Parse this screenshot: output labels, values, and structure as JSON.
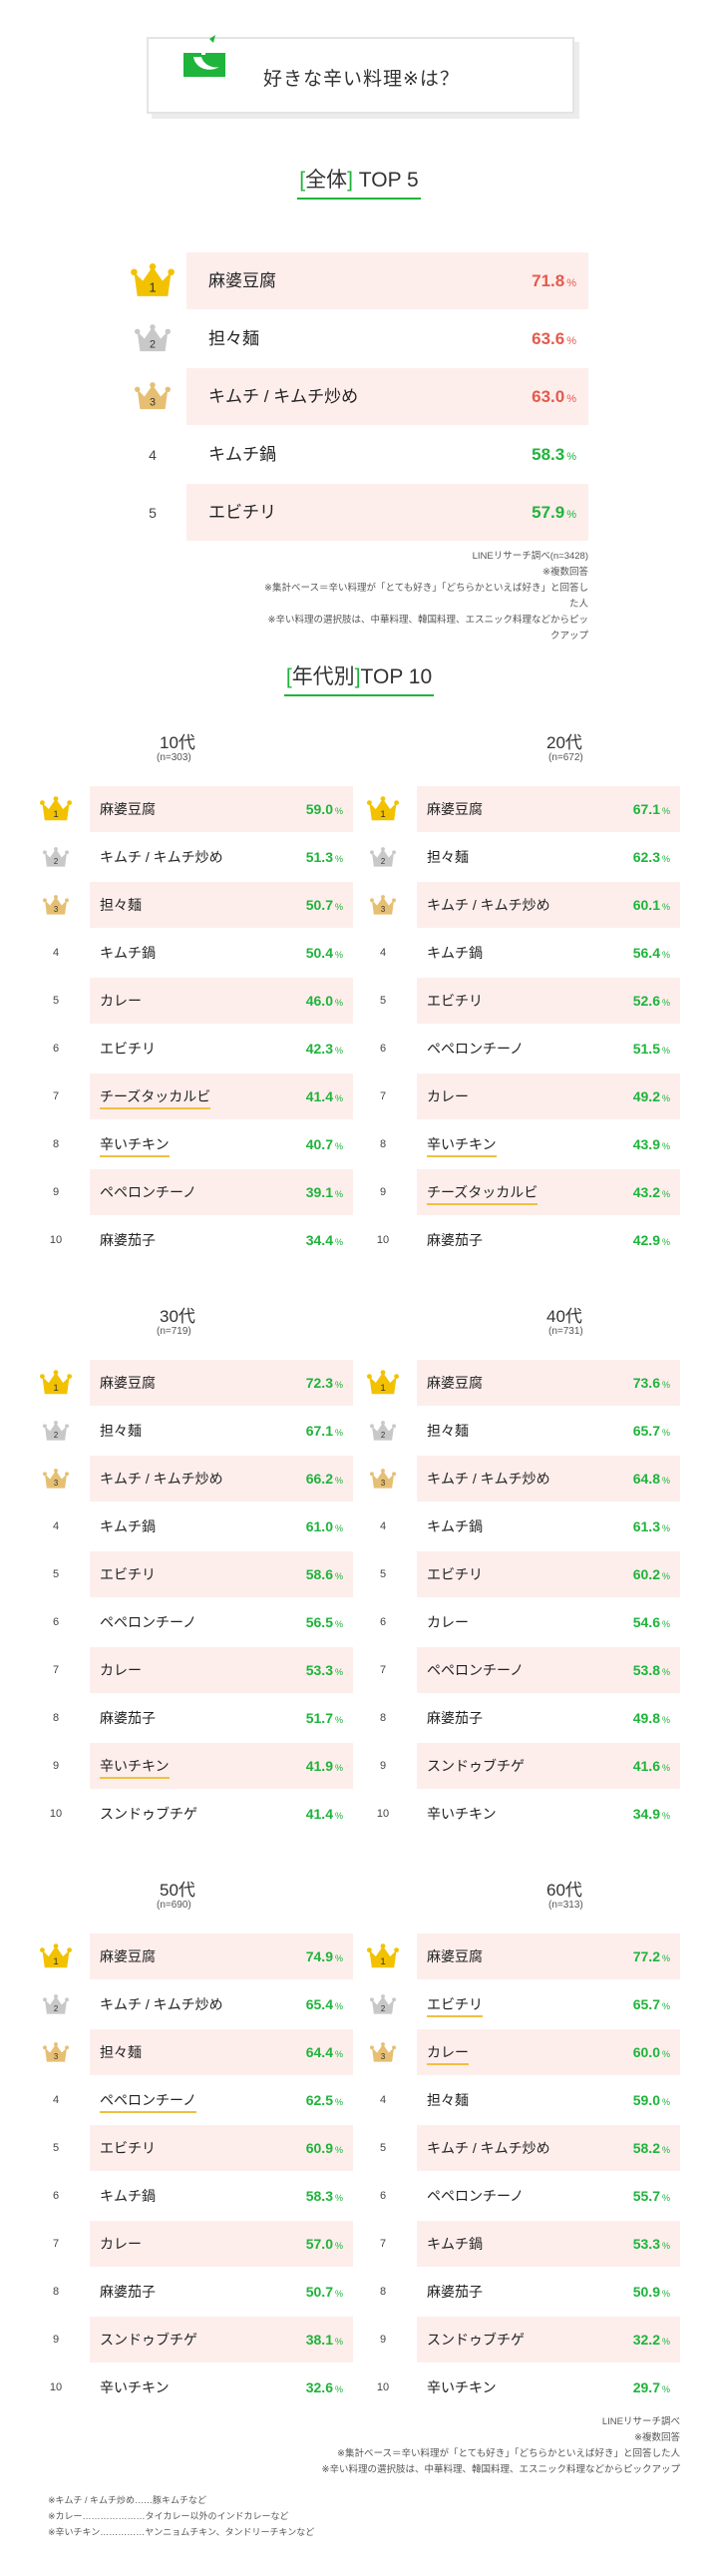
{
  "header": {
    "title": "好きな辛い料理※は？"
  },
  "overall": {
    "heading_open": "[",
    "heading_label": "全体",
    "heading_close": "]",
    "heading_suffix": "TOP 5",
    "rows": [
      {
        "rank": "1",
        "name": "麻婆豆腐",
        "value": "71.8",
        "unit": "%"
      },
      {
        "rank": "2",
        "name": "担々麺",
        "value": "63.6",
        "unit": "%"
      },
      {
        "rank": "3",
        "name": "キムチ / キムチ炒め",
        "value": "63.0",
        "unit": "%"
      },
      {
        "rank": "4",
        "name": "キムチ鍋",
        "value": "58.3",
        "unit": "%"
      },
      {
        "rank": "5",
        "name": "エビチリ",
        "value": "57.9",
        "unit": "%"
      }
    ],
    "notes": [
      "LINEリサーチ調べ(n=3428)",
      "※複数回答",
      "※集計ベース＝辛い料理が「とても好き」「どちらかといえば好き」と回答した人",
      "※辛い料理の選択肢は、中華料理、韓国料理、エスニック料理などからピックアップ"
    ]
  },
  "by_age": {
    "heading_open": "[",
    "heading_label": "年代別",
    "heading_close": "]",
    "heading_suffix": "TOP 10",
    "groups": [
      {
        "age": "10代",
        "n": "(n=303)",
        "rows": [
          {
            "rank": "1",
            "name": "麻婆豆腐",
            "value": "59.0",
            "unit": "%"
          },
          {
            "rank": "2",
            "name": "キムチ / キムチ炒め",
            "value": "51.3",
            "unit": "%"
          },
          {
            "rank": "3",
            "name": "担々麺",
            "value": "50.7",
            "unit": "%"
          },
          {
            "rank": "4",
            "name": "キムチ鍋",
            "value": "50.4",
            "unit": "%"
          },
          {
            "rank": "5",
            "name": "カレー",
            "value": "46.0",
            "unit": "%"
          },
          {
            "rank": "6",
            "name": "エビチリ",
            "value": "42.3",
            "unit": "%"
          },
          {
            "rank": "7",
            "name": "チーズタッカルビ",
            "value": "41.4",
            "unit": "%"
          },
          {
            "rank": "8",
            "name": "辛いチキン",
            "value": "40.7",
            "unit": "%"
          },
          {
            "rank": "9",
            "name": "ペペロンチーノ",
            "value": "39.1",
            "unit": "%"
          },
          {
            "rank": "10",
            "name": "麻婆茄子",
            "value": "34.4",
            "unit": "%"
          }
        ]
      },
      {
        "age": "20代",
        "n": "(n=672)",
        "rows": [
          {
            "rank": "1",
            "name": "麻婆豆腐",
            "value": "67.1",
            "unit": "%"
          },
          {
            "rank": "2",
            "name": "担々麺",
            "value": "62.3",
            "unit": "%"
          },
          {
            "rank": "3",
            "name": "キムチ / キムチ炒め",
            "value": "60.1",
            "unit": "%"
          },
          {
            "rank": "4",
            "name": "キムチ鍋",
            "value": "56.4",
            "unit": "%"
          },
          {
            "rank": "5",
            "name": "エビチリ",
            "value": "52.6",
            "unit": "%"
          },
          {
            "rank": "6",
            "name": "ペペロンチーノ",
            "value": "51.5",
            "unit": "%"
          },
          {
            "rank": "7",
            "name": "カレー",
            "value": "49.2",
            "unit": "%"
          },
          {
            "rank": "8",
            "name": "辛いチキン",
            "value": "43.9",
            "unit": "%"
          },
          {
            "rank": "9",
            "name": "チーズタッカルビ",
            "value": "43.2",
            "unit": "%"
          },
          {
            "rank": "10",
            "name": "麻婆茄子",
            "value": "42.9",
            "unit": "%"
          }
        ]
      },
      {
        "age": "30代",
        "n": "(n=719)",
        "rows": [
          {
            "rank": "1",
            "name": "麻婆豆腐",
            "value": "72.3",
            "unit": "%"
          },
          {
            "rank": "2",
            "name": "担々麺",
            "value": "67.1",
            "unit": "%"
          },
          {
            "rank": "3",
            "name": "キムチ / キムチ炒め",
            "value": "66.2",
            "unit": "%"
          },
          {
            "rank": "4",
            "name": "キムチ鍋",
            "value": "61.0",
            "unit": "%"
          },
          {
            "rank": "5",
            "name": "エビチリ",
            "value": "58.6",
            "unit": "%"
          },
          {
            "rank": "6",
            "name": "ペペロンチーノ",
            "value": "56.5",
            "unit": "%"
          },
          {
            "rank": "7",
            "name": "カレー",
            "value": "53.3",
            "unit": "%"
          },
          {
            "rank": "8",
            "name": "麻婆茄子",
            "value": "51.7",
            "unit": "%"
          },
          {
            "rank": "9",
            "name": "辛いチキン",
            "value": "41.9",
            "unit": "%"
          },
          {
            "rank": "10",
            "name": "スンドゥブチゲ",
            "value": "41.4",
            "unit": "%"
          }
        ]
      },
      {
        "age": "40代",
        "n": "(n=731)",
        "rows": [
          {
            "rank": "1",
            "name": "麻婆豆腐",
            "value": "73.6",
            "unit": "%"
          },
          {
            "rank": "2",
            "name": "担々麺",
            "value": "65.7",
            "unit": "%"
          },
          {
            "rank": "3",
            "name": "キムチ / キムチ炒め",
            "value": "64.8",
            "unit": "%"
          },
          {
            "rank": "4",
            "name": "キムチ鍋",
            "value": "61.3",
            "unit": "%"
          },
          {
            "rank": "5",
            "name": "エビチリ",
            "value": "60.2",
            "unit": "%"
          },
          {
            "rank": "6",
            "name": "カレー",
            "value": "54.6",
            "unit": "%"
          },
          {
            "rank": "7",
            "name": "ペペロンチーノ",
            "value": "53.8",
            "unit": "%"
          },
          {
            "rank": "8",
            "name": "麻婆茄子",
            "value": "49.8",
            "unit": "%"
          },
          {
            "rank": "9",
            "name": "スンドゥブチゲ",
            "value": "41.6",
            "unit": "%"
          },
          {
            "rank": "10",
            "name": "辛いチキン",
            "value": "34.9",
            "unit": "%"
          }
        ]
      },
      {
        "age": "50代",
        "n": "(n=690)",
        "rows": [
          {
            "rank": "1",
            "name": "麻婆豆腐",
            "value": "74.9",
            "unit": "%"
          },
          {
            "rank": "2",
            "name": "キムチ / キムチ炒め",
            "value": "65.4",
            "unit": "%"
          },
          {
            "rank": "3",
            "name": "担々麺",
            "value": "64.4",
            "unit": "%"
          },
          {
            "rank": "4",
            "name": "ペペロンチーノ",
            "value": "62.5",
            "unit": "%"
          },
          {
            "rank": "5",
            "name": "エビチリ",
            "value": "60.9",
            "unit": "%"
          },
          {
            "rank": "6",
            "name": "キムチ鍋",
            "value": "58.3",
            "unit": "%"
          },
          {
            "rank": "7",
            "name": "カレー",
            "value": "57.0",
            "unit": "%"
          },
          {
            "rank": "8",
            "name": "麻婆茄子",
            "value": "50.7",
            "unit": "%"
          },
          {
            "rank": "9",
            "name": "スンドゥブチゲ",
            "value": "38.1",
            "unit": "%"
          },
          {
            "rank": "10",
            "name": "辛いチキン",
            "value": "32.6",
            "unit": "%"
          }
        ]
      },
      {
        "age": "60代",
        "n": "(n=313)",
        "rows": [
          {
            "rank": "1",
            "name": "麻婆豆腐",
            "value": "77.2",
            "unit": "%"
          },
          {
            "rank": "2",
            "name": "エビチリ",
            "value": "65.7",
            "unit": "%"
          },
          {
            "rank": "3",
            "name": "カレー",
            "value": "60.0",
            "unit": "%"
          },
          {
            "rank": "4",
            "name": "担々麺",
            "value": "59.0",
            "unit": "%"
          },
          {
            "rank": "5",
            "name": "キムチ / キムチ炒め",
            "value": "58.2",
            "unit": "%"
          },
          {
            "rank": "6",
            "name": "ペペロンチーノ",
            "value": "55.7",
            "unit": "%"
          },
          {
            "rank": "7",
            "name": "キムチ鍋",
            "value": "53.3",
            "unit": "%"
          },
          {
            "rank": "8",
            "name": "麻婆茄子",
            "value": "50.9",
            "unit": "%"
          },
          {
            "rank": "9",
            "name": "スンドゥブチゲ",
            "value": "32.2",
            "unit": "%"
          },
          {
            "rank": "10",
            "name": "辛いチキン",
            "value": "29.7",
            "unit": "%"
          }
        ]
      }
    ],
    "notes": [
      "LINEリサーチ調べ",
      "※複数回答",
      "※集計ベース＝辛い料理が「とても好き」「どちらかといえば好き」と回答した人",
      "※辛い料理の選択肢は、中華料理、韓国料理、エスニック料理などからピックアップ"
    ],
    "footnotes": [
      "※キムチ / キムチ炒め……豚キムチなど",
      "※カレー…………………タイカレー以外のインドカレーなど",
      "※辛いチキン……………ヤンニョムチキン、タンドリーチキンなど"
    ]
  },
  "colors": {
    "accent_green": "#1fb43b",
    "row_highlight": "#fdeeec",
    "overall_top3_value": "#e45a4c",
    "crown_gold": "#f2c200",
    "crown_silver": "#c8c8c8",
    "crown_bronze": "#e6bf73",
    "underline_yellow": "#f0c040"
  },
  "chart_data": [
    {
      "type": "table",
      "title": "全体 TOP 5",
      "categories": [
        "麻婆豆腐",
        "担々麺",
        "キムチ / キムチ炒め",
        "キムチ鍋",
        "エビチリ"
      ],
      "values": [
        71.8,
        63.6,
        63.0,
        58.3,
        57.9
      ],
      "unit": "%"
    },
    {
      "type": "table",
      "title": "年代別 TOP 10",
      "series": [
        {
          "name": "10代",
          "categories": [
            "麻婆豆腐",
            "キムチ / キムチ炒め",
            "担々麺",
            "キムチ鍋",
            "カレー",
            "エビチリ",
            "チーズタッカルビ",
            "辛いチキン",
            "ペペロンチーノ",
            "麻婆茄子"
          ],
          "values": [
            59.0,
            51.3,
            50.7,
            50.4,
            46.0,
            42.3,
            41.4,
            40.7,
            39.1,
            34.4
          ]
        },
        {
          "name": "20代",
          "categories": [
            "麻婆豆腐",
            "担々麺",
            "キムチ / キムチ炒め",
            "キムチ鍋",
            "エビチリ",
            "ペペロンチーノ",
            "カレー",
            "辛いチキン",
            "チーズタッカルビ",
            "麻婆茄子"
          ],
          "values": [
            67.1,
            62.3,
            60.1,
            56.4,
            52.6,
            51.5,
            49.2,
            43.9,
            43.2,
            42.9
          ]
        },
        {
          "name": "30代",
          "categories": [
            "麻婆豆腐",
            "担々麺",
            "キムチ / キムチ炒め",
            "キムチ鍋",
            "エビチリ",
            "ペペロンチーノ",
            "カレー",
            "麻婆茄子",
            "辛いチキン",
            "スンドゥブチゲ"
          ],
          "values": [
            72.3,
            67.1,
            66.2,
            61.0,
            58.6,
            56.5,
            53.3,
            51.7,
            41.9,
            41.4
          ]
        },
        {
          "name": "40代",
          "categories": [
            "麻婆豆腐",
            "担々麺",
            "キムチ / キムチ炒め",
            "キムチ鍋",
            "エビチリ",
            "カレー",
            "ペペロンチーノ",
            "麻婆茄子",
            "スンドゥブチゲ",
            "辛いチキン"
          ],
          "values": [
            73.6,
            65.7,
            64.8,
            61.3,
            60.2,
            54.6,
            53.8,
            49.8,
            41.6,
            34.9
          ]
        },
        {
          "name": "50代",
          "categories": [
            "麻婆豆腐",
            "キムチ / キムチ炒め",
            "担々麺",
            "ペペロンチーノ",
            "エビチリ",
            "キムチ鍋",
            "カレー",
            "麻婆茄子",
            "スンドゥブチゲ",
            "辛いチキン"
          ],
          "values": [
            74.9,
            65.4,
            64.4,
            62.5,
            60.9,
            58.3,
            57.0,
            50.7,
            38.1,
            32.6
          ]
        },
        {
          "name": "60代",
          "categories": [
            "麻婆豆腐",
            "エビチリ",
            "カレー",
            "担々麺",
            "キムチ / キムチ炒め",
            "ペペロンチーノ",
            "キムチ鍋",
            "麻婆茄子",
            "スンドゥブチゲ",
            "辛いチキン"
          ],
          "values": [
            77.2,
            65.7,
            60.0,
            59.0,
            58.2,
            55.7,
            53.3,
            50.9,
            32.2,
            29.7
          ]
        }
      ],
      "unit": "%"
    }
  ]
}
